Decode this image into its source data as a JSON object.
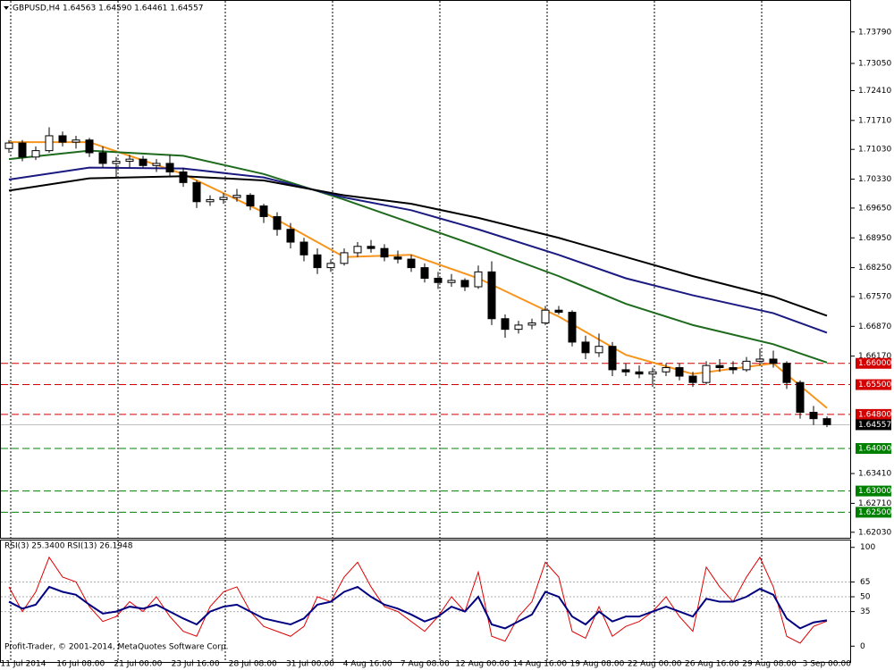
{
  "watermark": "Profit-Trader, © 2001-2014, MetaQuotes Software Corp.",
  "chart_data": [
    {
      "type": "candlestick",
      "title": "GBPUSD,H4  1.64563 1.64590 1.64461 1.64557",
      "categories": [
        "11 Jul 2014",
        "16 Jul 08:00",
        "21 Jul 00:00",
        "23 Jul 16:00",
        "28 Jul 08:00",
        "31 Jul 00:00",
        "4 Aug 16:00",
        "7 Aug 08:00",
        "12 Aug 00:00",
        "14 Aug 16:00",
        "19 Aug 08:00",
        "22 Aug 00:00",
        "26 Aug 16:00",
        "29 Aug 08:00",
        "3 Sep 00:00"
      ],
      "ohlc": {
        "open": [
          1.7105,
          1.7118,
          1.7085,
          1.71,
          1.7135,
          1.712,
          1.7125,
          1.7095,
          1.707,
          1.7075,
          1.708,
          1.7065,
          1.707,
          1.705,
          1.7025,
          1.698,
          1.6985,
          1.699,
          1.6995,
          1.697,
          1.6945,
          1.6915,
          1.6885,
          1.6855,
          1.6825,
          1.6835,
          1.686,
          1.6875,
          1.687,
          1.685,
          1.6845,
          1.6825,
          1.68,
          1.679,
          1.6795,
          1.678,
          1.6815,
          1.6705,
          1.668,
          1.669,
          1.6695,
          1.6725,
          1.672,
          1.665,
          1.6625,
          1.664,
          1.6585,
          1.658,
          1.6575,
          1.658,
          1.659,
          1.657,
          1.6555,
          1.6595,
          1.659,
          1.6585,
          1.6605,
          1.661,
          1.66,
          1.6555,
          1.6485,
          1.647
        ],
        "high": [
          1.7125,
          1.7125,
          1.711,
          1.7155,
          1.7145,
          1.7135,
          1.713,
          1.711,
          1.7085,
          1.709,
          1.7088,
          1.708,
          1.709,
          1.706,
          1.703,
          1.6995,
          1.7,
          1.701,
          1.7,
          1.6975,
          1.6955,
          1.693,
          1.6895,
          1.687,
          1.6845,
          1.687,
          1.6885,
          1.689,
          1.688,
          1.6865,
          1.6855,
          1.6835,
          1.6815,
          1.681,
          1.68,
          1.683,
          1.684,
          1.6715,
          1.67,
          1.6705,
          1.6735,
          1.6735,
          1.6725,
          1.6665,
          1.667,
          1.665,
          1.66,
          1.6595,
          1.659,
          1.66,
          1.66,
          1.658,
          1.6605,
          1.661,
          1.6605,
          1.6615,
          1.6635,
          1.663,
          1.6605,
          1.656,
          1.65,
          1.6475
        ],
        "low": [
          1.7095,
          1.7075,
          1.7078,
          1.7095,
          1.711,
          1.7105,
          1.7085,
          1.706,
          1.7035,
          1.706,
          1.706,
          1.705,
          1.704,
          1.7015,
          1.6965,
          1.697,
          1.6975,
          1.698,
          1.696,
          1.693,
          1.69,
          1.687,
          1.684,
          1.681,
          1.6815,
          1.683,
          1.685,
          1.686,
          1.684,
          1.6835,
          1.6815,
          1.679,
          1.6775,
          1.678,
          1.677,
          1.6775,
          1.669,
          1.666,
          1.667,
          1.668,
          1.669,
          1.6715,
          1.664,
          1.661,
          1.6615,
          1.657,
          1.657,
          1.6565,
          1.6545,
          1.657,
          1.656,
          1.6545,
          1.655,
          1.658,
          1.6575,
          1.658,
          1.6595,
          1.659,
          1.654,
          1.647,
          1.6455,
          1.645
        ],
        "close": [
          1.7118,
          1.7085,
          1.71,
          1.7135,
          1.712,
          1.7125,
          1.7095,
          1.707,
          1.7075,
          1.708,
          1.7065,
          1.707,
          1.705,
          1.7025,
          1.698,
          1.6985,
          1.699,
          1.6995,
          1.697,
          1.6945,
          1.6915,
          1.6885,
          1.6855,
          1.6825,
          1.6835,
          1.686,
          1.6875,
          1.687,
          1.685,
          1.6845,
          1.6825,
          1.68,
          1.679,
          1.6795,
          1.678,
          1.6815,
          1.6705,
          1.668,
          1.669,
          1.6695,
          1.6725,
          1.672,
          1.665,
          1.6625,
          1.664,
          1.6585,
          1.658,
          1.6575,
          1.658,
          1.659,
          1.657,
          1.6555,
          1.6595,
          1.659,
          1.6585,
          1.6605,
          1.661,
          1.66,
          1.6555,
          1.6485,
          1.647,
          1.6456
        ]
      },
      "overlays": [
        {
          "color": "#f7941d",
          "x": [
            0,
            6,
            13,
            19,
            25,
            30,
            35,
            41,
            46,
            51,
            57,
            61
          ],
          "values": [
            1.712,
            1.712,
            1.7045,
            1.6955,
            1.685,
            1.6855,
            1.68,
            1.671,
            1.662,
            1.6575,
            1.66,
            1.6495
          ]
        },
        {
          "color": "#1e6b1e",
          "x": [
            0,
            6,
            13,
            19,
            25,
            30,
            35,
            41,
            46,
            51,
            57,
            61
          ],
          "values": [
            1.708,
            1.71,
            1.7088,
            1.7045,
            1.6985,
            1.693,
            1.6875,
            1.6805,
            1.674,
            1.669,
            1.6645,
            1.6602
          ]
        },
        {
          "color": "#1a1a80",
          "x": [
            0,
            6,
            13,
            19,
            25,
            30,
            35,
            41,
            46,
            51,
            57,
            61
          ],
          "values": [
            1.7032,
            1.706,
            1.7058,
            1.7037,
            1.699,
            1.696,
            1.6915,
            1.6855,
            1.68,
            1.676,
            1.6718,
            1.6672
          ]
        },
        {
          "color": "#000000",
          "x": [
            0,
            6,
            13,
            19,
            25,
            30,
            35,
            41,
            46,
            51,
            57,
            61
          ],
          "values": [
            1.7006,
            1.7035,
            1.704,
            1.703,
            1.6995,
            1.6975,
            1.6942,
            1.6895,
            1.685,
            1.6805,
            1.6757,
            1.6712
          ]
        }
      ],
      "ylim": [
        1.619,
        1.7452
      ],
      "yticks": [
        {
          "value": 1.7379,
          "label": "1.73790"
        },
        {
          "value": 1.7305,
          "label": "1.73050"
        },
        {
          "value": 1.7241,
          "label": "1.72410"
        },
        {
          "value": 1.7171,
          "label": "1.71710"
        },
        {
          "value": 1.7103,
          "label": "1.71030"
        },
        {
          "value": 1.7033,
          "label": "1.70330"
        },
        {
          "value": 1.6965,
          "label": "1.69650"
        },
        {
          "value": 1.6895,
          "label": "1.68950"
        },
        {
          "value": 1.6825,
          "label": "1.68250"
        },
        {
          "value": 1.6757,
          "label": "1.67570"
        },
        {
          "value": 1.6687,
          "label": "1.66870"
        },
        {
          "value": 1.6617,
          "label": "1.66170"
        },
        {
          "value": 1.6341,
          "label": "1.63410"
        },
        {
          "value": 1.6271,
          "label": "1.62710"
        },
        {
          "value": 1.6203,
          "label": "1.62030"
        }
      ],
      "levels": [
        {
          "value": 1.66,
          "label": "1.66000",
          "color": "#d40000"
        },
        {
          "value": 1.655,
          "label": "1.65500",
          "color": "#d40000"
        },
        {
          "value": 1.648,
          "label": "1.64800",
          "color": "#d40000"
        },
        {
          "value": 1.64,
          "label": "1.64000",
          "color": "#008000"
        },
        {
          "value": 1.63,
          "label": "1.63000",
          "color": "#008000"
        },
        {
          "value": 1.625,
          "label": "1.62500",
          "color": "#008000"
        }
      ],
      "current": {
        "value": 1.64557,
        "label": "1.64557"
      }
    },
    {
      "type": "line",
      "title": "RSI(3) 25.3400  RSI(13) 26.1948",
      "series": [
        {
          "color": "#e00000",
          "values": [
            60,
            35,
            55,
            90,
            70,
            65,
            40,
            25,
            30,
            45,
            35,
            50,
            30,
            15,
            10,
            40,
            55,
            60,
            35,
            20,
            15,
            10,
            20,
            50,
            45,
            70,
            85,
            60,
            40,
            35,
            25,
            15,
            30,
            50,
            35,
            75,
            10,
            5,
            30,
            45,
            85,
            70,
            15,
            8,
            40,
            10,
            20,
            25,
            35,
            50,
            30,
            15,
            80,
            60,
            45,
            70,
            90,
            60,
            10,
            3,
            20,
            25.34
          ]
        },
        {
          "color": "#000080",
          "values": [
            45,
            38,
            42,
            60,
            55,
            52,
            42,
            33,
            35,
            40,
            38,
            42,
            35,
            28,
            22,
            35,
            40,
            42,
            35,
            28,
            25,
            22,
            28,
            42,
            45,
            55,
            60,
            50,
            42,
            38,
            32,
            25,
            30,
            40,
            35,
            50,
            22,
            18,
            25,
            32,
            55,
            50,
            30,
            22,
            35,
            25,
            30,
            30,
            35,
            40,
            35,
            30,
            48,
            45,
            45,
            50,
            58,
            52,
            28,
            18,
            24,
            26.1948
          ]
        }
      ],
      "ylim": [
        -16,
        107
      ],
      "yticks": [
        100,
        65,
        50,
        35,
        0
      ],
      "levels": [
        65,
        50,
        35
      ]
    }
  ]
}
